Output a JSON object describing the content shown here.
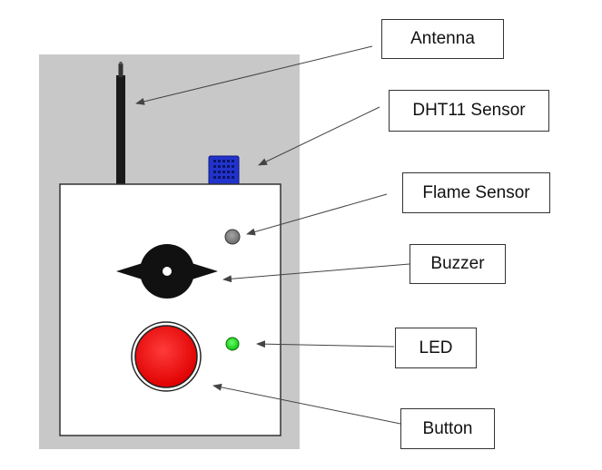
{
  "labels": {
    "antenna": "Antenna",
    "dht11": "DHT11 Sensor",
    "flame": "Flame Sensor",
    "buzzer": "Buzzer",
    "led": "LED",
    "button": "Button"
  },
  "colors": {
    "background_panel": "#c8c8c8",
    "enclosure": "#ffffff",
    "antenna": "#1a1a1a",
    "dht11_sensor": "#2233cc",
    "flame_sensor": "#8a8a8a",
    "buzzer": "#111111",
    "led": "#22dd22",
    "button": "#ff1a1a",
    "leader_lines": "#444444"
  }
}
